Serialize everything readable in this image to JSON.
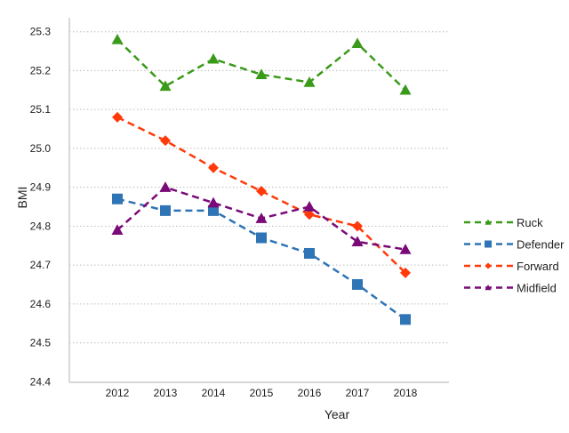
{
  "chart_data": {
    "type": "line",
    "title": "",
    "xlabel": "Year",
    "ylabel": "BMI",
    "ylim": [
      24.4,
      25.3
    ],
    "yticks": [
      "24.4",
      "24.5",
      "24.6",
      "24.7",
      "24.8",
      "24.9",
      "25.0",
      "25.1",
      "25.2",
      "25.3"
    ],
    "categories": [
      "2012",
      "2013",
      "2014",
      "2015",
      "2016",
      "2017",
      "2018"
    ],
    "grid": "horizontal dotted",
    "legend": "right",
    "series": [
      {
        "name": "Ruck",
        "color": "#3a9a1a",
        "marker": "triangle",
        "values": [
          25.28,
          25.16,
          25.23,
          25.19,
          25.17,
          25.27,
          25.15
        ]
      },
      {
        "name": "Defender",
        "color": "#2f74b5",
        "marker": "square",
        "values": [
          24.87,
          24.84,
          24.84,
          24.77,
          24.73,
          24.65,
          24.56
        ]
      },
      {
        "name": "Forward",
        "color": "#ff3a0a",
        "marker": "diamond",
        "values": [
          25.08,
          25.02,
          24.95,
          24.89,
          24.83,
          24.8,
          24.68
        ]
      },
      {
        "name": "Midfield",
        "color": "#7a0a78",
        "marker": "triangle",
        "values": [
          24.79,
          24.9,
          24.86,
          24.82,
          24.85,
          24.76,
          24.74
        ]
      }
    ]
  }
}
